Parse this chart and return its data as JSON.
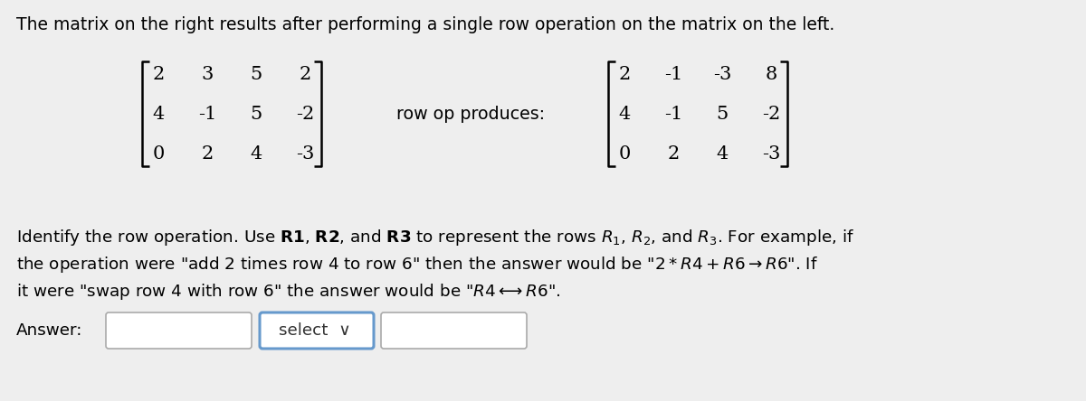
{
  "title": "The matrix on the right results after performing a single row operation on the matrix on the left.",
  "background_color": "#eeeeee",
  "left_matrix": [
    [
      "2",
      "3",
      "5",
      "2"
    ],
    [
      "4",
      "-1",
      "5",
      "-2"
    ],
    [
      "0",
      "2",
      "4",
      "-3"
    ]
  ],
  "right_matrix": [
    [
      "2",
      "-1",
      "-3",
      "8"
    ],
    [
      "4",
      "-1",
      "5",
      "-2"
    ],
    [
      "0",
      "2",
      "4",
      "-3"
    ]
  ],
  "middle_text": "row op produces:",
  "answer_label": "Answer:",
  "select_text": "select  ∨",
  "title_fontsize": 13.5,
  "matrix_fontsize": 15,
  "text_fontsize": 13.2
}
